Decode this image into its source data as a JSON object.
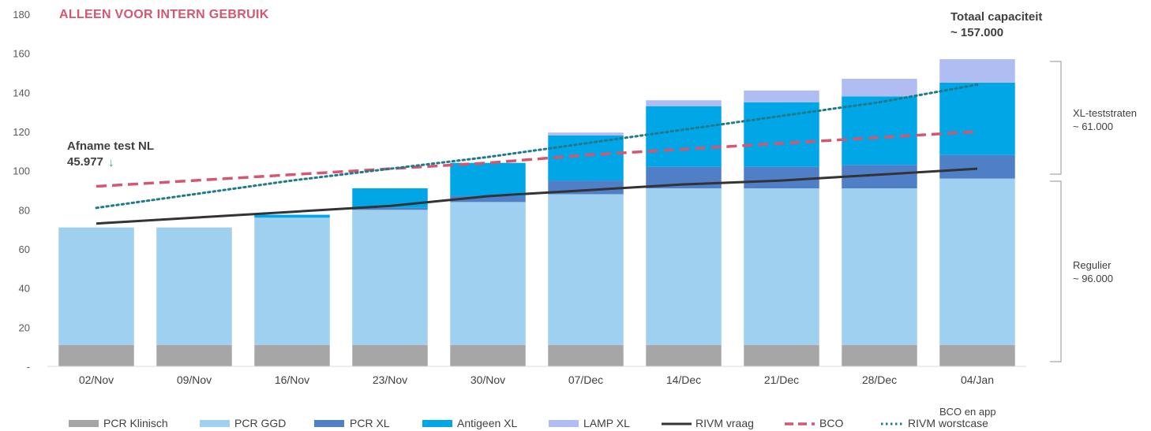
{
  "banner": "ALLEEN VOOR INTERN GEBRUIK",
  "annotations": {
    "total_line1": "Totaal capaciteit",
    "total_line2": "~ 157.000",
    "afname_line1": "Afname test NL",
    "afname_line2": "45.977",
    "afname_arrow": "↓",
    "xl_line1": "XL-teststraten",
    "xl_line2": "~ 61.000",
    "regulier_line1": "Regulier",
    "regulier_line2": "~ 96.000",
    "bco_app": "BCO en app"
  },
  "colors": {
    "pcr_klinisch": "#a6a6a6",
    "pcr_ggd": "#9fd0ef",
    "pcr_xl": "#4f7fc7",
    "antigeen_xl": "#00a6e6",
    "lamp_xl": "#b0bdf2",
    "rivm_vraag": "#333333",
    "bco": "#d4566f",
    "rivm_worstcase": "#1f7a8c",
    "banner": "#d4566f",
    "afname_arrow": "#2f9e63"
  },
  "chart_data": {
    "type": "bar",
    "stacked": true,
    "categories": [
      "02/Nov",
      "09/Nov",
      "16/Nov",
      "23/Nov",
      "30/Nov",
      "07/Dec",
      "14/Dec",
      "21/Dec",
      "28/Dec",
      "04/Jan"
    ],
    "y_ticks": [
      "-",
      "20",
      "40",
      "60",
      "80",
      "100",
      "120",
      "140",
      "160",
      "180"
    ],
    "ylim": [
      0,
      180
    ],
    "series": [
      {
        "key": "pcr_klinisch",
        "name": "PCR Klinisch",
        "values": [
          11,
          11,
          11,
          11,
          11,
          11,
          11,
          11,
          11,
          11
        ]
      },
      {
        "key": "pcr_ggd",
        "name": "PCR GGD",
        "values": [
          60,
          60,
          65,
          69,
          73,
          77,
          80,
          80,
          80,
          85
        ]
      },
      {
        "key": "pcr_xl",
        "name": "PCR XL",
        "values": [
          0,
          0,
          0,
          1,
          3,
          7,
          11,
          11,
          12,
          12
        ]
      },
      {
        "key": "antigeen_xl",
        "name": "Antigeen XL",
        "values": [
          0,
          0,
          1.5,
          10,
          17,
          23,
          31,
          33,
          35,
          37
        ]
      },
      {
        "key": "lamp_xl",
        "name": "LAMP XL",
        "values": [
          0,
          0,
          0,
          0,
          0,
          1.5,
          3,
          6,
          9,
          12
        ]
      }
    ],
    "lines": [
      {
        "key": "rivm_vraag",
        "name": "RIVM vraag",
        "style": "solid",
        "values": [
          73,
          76,
          79,
          82,
          87,
          90,
          93,
          95,
          98,
          101
        ]
      },
      {
        "key": "bco",
        "name": "BCO",
        "style": "dashed",
        "values": [
          92,
          95,
          98,
          101,
          104,
          108,
          111,
          114,
          117,
          120
        ]
      },
      {
        "key": "rivm_worstcase",
        "name": "RIVM worstcase",
        "style": "dotted",
        "values": [
          81,
          88,
          95,
          101,
          107,
          114,
          121,
          128,
          135,
          144
        ]
      }
    ],
    "legend_placement": "bottom",
    "grid": false
  }
}
